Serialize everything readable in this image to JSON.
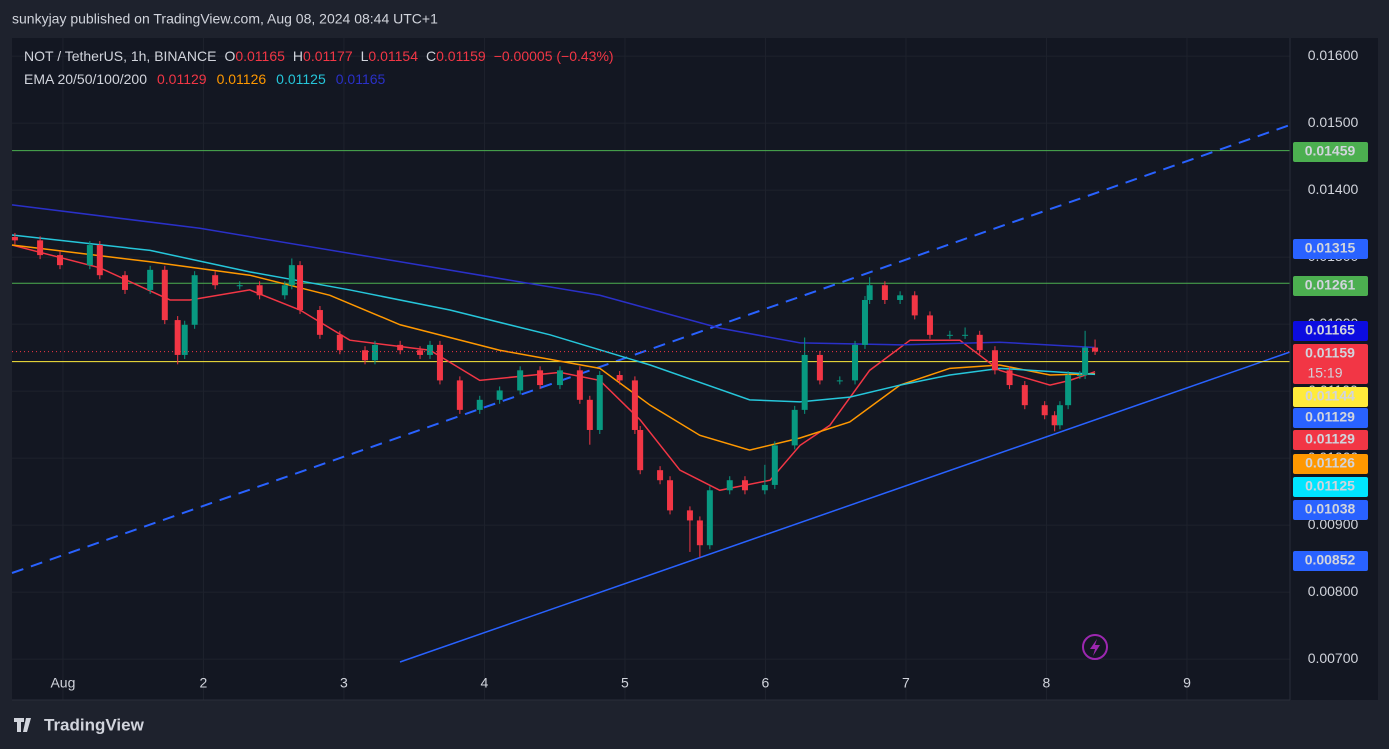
{
  "header": "sunkyjay published on TradingView.com, Aug 08, 2024 08:44 UTC+1",
  "footer": "TradingView",
  "chart_data": {
    "type": "candlestick",
    "symbol": "NOT / TetherUS, 1h, BINANCE",
    "ohlc_labels": [
      "O",
      "H",
      "L",
      "C"
    ],
    "change": "−0.00005 (−0.43%)",
    "indicator": "EMA 20/50/100/200",
    "countdown": "15:19",
    "x": [
      -8.2,
      -3.9,
      -0.5,
      4.6,
      6.3,
      10.6,
      14.9,
      17.4,
      19.6,
      20.8,
      22.5,
      26.0,
      30.2,
      33.6,
      37.9,
      39.1,
      40.5,
      43.9,
      47.3,
      51.6,
      53.3,
      57.6,
      61.0,
      62.7,
      64.4,
      67.8,
      71.2,
      74.6,
      78.1,
      81.5,
      84.9,
      88.3,
      90.0,
      91.7,
      95.1,
      97.7,
      98.6,
      102.0,
      103.7,
      107.1,
      108.8,
      110.5,
      113.9,
      116.5,
      119.9,
      121.6,
      125.0,
      126.7,
      129.3,
      132.7,
      135.3,
      137.0,
      137.8,
      140.4,
      143.0,
      145.5,
      148.1,
      151.5,
      154.1,
      156.6,
      159.2,
      161.7,
      164.3,
      167.7,
      169.4,
      170.3,
      171.7,
      173.7,
      174.6,
      176.3
    ],
    "open": [
      0.0133,
      0.01325,
      0.01303,
      0.01288,
      0.01318,
      0.01273,
      0.01251,
      0.01281,
      0.01206,
      0.01154,
      0.01199,
      0.01273,
      0.01258,
      0.01258,
      0.01243,
      0.01258,
      0.01288,
      0.01221,
      0.01184,
      0.01161,
      0.01146,
      0.01169,
      0.01161,
      0.01154,
      0.01169,
      0.01116,
      0.01072,
      0.01087,
      0.01101,
      0.01131,
      0.01109,
      0.01131,
      0.01087,
      0.01042,
      0.01124,
      0.01116,
      0.01042,
      0.00982,
      0.00967,
      0.00922,
      0.00907,
      0.0087,
      0.00952,
      0.00967,
      0.00952,
      0.0096,
      0.01019,
      0.01072,
      0.01154,
      0.01116,
      0.01116,
      0.01169,
      0.01236,
      0.01258,
      0.01236,
      0.01243,
      0.01213,
      0.01184,
      0.01184,
      0.01184,
      0.01161,
      0.01131,
      0.01109,
      0.01079,
      0.01064,
      0.01049,
      0.01079,
      0.01124,
      0.01124,
      0.01165
    ],
    "high": [
      0.01336,
      0.01331,
      0.01309,
      0.01324,
      0.01324,
      0.01279,
      0.01287,
      0.01287,
      0.01212,
      0.01205,
      0.01279,
      0.01279,
      0.01264,
      0.01264,
      0.01264,
      0.01298,
      0.01294,
      0.01227,
      0.0119,
      0.01167,
      0.01175,
      0.01175,
      0.01167,
      0.01175,
      0.01175,
      0.01122,
      0.01093,
      0.01107,
      0.01137,
      0.01137,
      0.01137,
      0.01137,
      0.01093,
      0.0113,
      0.0113,
      0.01122,
      0.01048,
      0.00988,
      0.00973,
      0.00928,
      0.00913,
      0.00958,
      0.00973,
      0.00973,
      0.0099,
      0.01025,
      0.01078,
      0.0118,
      0.0116,
      0.01122,
      0.01175,
      0.01242,
      0.0127,
      0.01264,
      0.01249,
      0.01249,
      0.01219,
      0.0119,
      0.01195,
      0.0119,
      0.01167,
      0.01137,
      0.01115,
      0.01085,
      0.0107,
      0.01085,
      0.0113,
      0.0113,
      0.0119,
      0.01177
    ],
    "low": [
      0.01319,
      0.01297,
      0.01282,
      0.01282,
      0.01267,
      0.01245,
      0.01245,
      0.012,
      0.0114,
      0.01148,
      0.01193,
      0.01252,
      0.01252,
      0.01237,
      0.01237,
      0.01252,
      0.01215,
      0.01178,
      0.01155,
      0.0114,
      0.0114,
      0.01155,
      0.01148,
      0.01148,
      0.0111,
      0.01066,
      0.01066,
      0.01081,
      0.01095,
      0.01103,
      0.01103,
      0.01081,
      0.0102,
      0.01036,
      0.0111,
      0.01036,
      0.00976,
      0.00961,
      0.00916,
      0.0086,
      0.00852,
      0.00864,
      0.00946,
      0.00946,
      0.00946,
      0.00954,
      0.01013,
      0.01066,
      0.0111,
      0.0111,
      0.0111,
      0.01163,
      0.0123,
      0.0123,
      0.0123,
      0.01207,
      0.01178,
      0.01178,
      0.01178,
      0.01155,
      0.01125,
      0.01103,
      0.01073,
      0.01058,
      0.0104,
      0.01043,
      0.01073,
      0.01118,
      0.01118,
      0.01154
    ],
    "close": [
      0.01325,
      0.01303,
      0.01288,
      0.01318,
      0.01273,
      0.01251,
      0.01281,
      0.01206,
      0.01154,
      0.01199,
      0.01273,
      0.01258,
      0.01258,
      0.01243,
      0.01258,
      0.01288,
      0.01221,
      0.01184,
      0.01161,
      0.01146,
      0.01169,
      0.01161,
      0.01154,
      0.01169,
      0.01116,
      0.01072,
      0.01087,
      0.01101,
      0.01131,
      0.01109,
      0.01131,
      0.01087,
      0.01042,
      0.01124,
      0.01116,
      0.01042,
      0.00982,
      0.00967,
      0.00922,
      0.00907,
      0.0087,
      0.00952,
      0.00967,
      0.00952,
      0.0096,
      0.01019,
      0.01072,
      0.01154,
      0.01116,
      0.01116,
      0.01169,
      0.01236,
      0.01258,
      0.01236,
      0.01243,
      0.01213,
      0.01184,
      0.01184,
      0.01184,
      0.01161,
      0.01131,
      0.01109,
      0.01079,
      0.01064,
      0.01049,
      0.01079,
      0.01124,
      0.01124,
      0.01165,
      0.01159
    ],
    "up_color": "#089981",
    "down_color": "#f23645",
    "ema": [
      {
        "color": "#f23645",
        "x": [
          -8.7,
          6.3,
          18.3,
          21.7,
          31.9,
          40.5,
          49.0,
          62.7,
          71.2,
          84.9,
          91.7,
          98.6,
          105.4,
          112.2,
          120.8,
          125.9,
          131.0,
          137.8,
          144.7,
          153.2,
          160.0,
          168.6,
          172.0,
          176.3
        ],
        "values": [
          0.01318,
          0.01284,
          0.01236,
          0.01236,
          0.01251,
          0.01221,
          0.01176,
          0.01161,
          0.01116,
          0.01128,
          0.01116,
          0.01057,
          0.00982,
          0.00952,
          0.00967,
          0.01019,
          0.01049,
          0.01131,
          0.01176,
          0.01176,
          0.01131,
          0.01109,
          0.01116,
          0.01129
        ]
      },
      {
        "color": "#ff9800",
        "x": [
          -8.7,
          14.9,
          31.9,
          45.6,
          57.6,
          74.6,
          91.7,
          100.3,
          108.8,
          117.3,
          125.9,
          134.4,
          143.0,
          151.5,
          160.0,
          168.6,
          176.3
        ],
        "values": [
          0.01318,
          0.01293,
          0.01273,
          0.01243,
          0.01199,
          0.01161,
          0.01134,
          0.01079,
          0.01034,
          0.01012,
          0.0103,
          0.01054,
          0.01109,
          0.01134,
          0.01139,
          0.01124,
          0.01126
        ]
      },
      {
        "color": "#26c6da",
        "x": [
          -8.7,
          14.9,
          31.9,
          49.0,
          66.1,
          83.2,
          100.3,
          117.3,
          125.9,
          134.4,
          143.0,
          151.5,
          160.0,
          176.3
        ],
        "values": [
          0.01333,
          0.0131,
          0.01278,
          0.01251,
          0.01221,
          0.01184,
          0.01139,
          0.01087,
          0.01084,
          0.01091,
          0.01109,
          0.01124,
          0.01134,
          0.01125
        ]
      },
      {
        "color": "#2a30c8",
        "x": [
          -8.7,
          23.4,
          57.6,
          91.7,
          112.2,
          125.9,
          143.0,
          160.0,
          176.3
        ],
        "values": [
          0.01378,
          0.01343,
          0.01293,
          0.01243,
          0.01194,
          0.01172,
          0.01169,
          0.01173,
          0.01165
        ]
      }
    ],
    "hlines": [
      {
        "value": 0.01459,
        "color": "#4caf50"
      },
      {
        "value": 0.01261,
        "color": "#4caf50"
      },
      {
        "value": 0.01144,
        "color": "#ffeb3b"
      }
    ],
    "axis_labels": [
      0.01315,
      0.01129,
      0.01038,
      0.00852
    ],
    "axis_label_color": "#2962ff",
    "xlim": [
      -8.7,
      209.6
    ],
    "ylim": [
      0.00639,
      0.01627
    ],
    "xticks": [
      {
        "value": 0,
        "label": "Aug"
      },
      {
        "value": 24,
        "label": "2"
      },
      {
        "value": 48,
        "label": "3"
      },
      {
        "value": 72,
        "label": "4"
      },
      {
        "value": 96,
        "label": "5"
      },
      {
        "value": 120,
        "label": "6"
      },
      {
        "value": 144,
        "label": "7"
      },
      {
        "value": 168,
        "label": "8"
      },
      {
        "value": 192,
        "label": "9"
      }
    ],
    "yticks": [
      {
        "value": 0.007,
        "label": "0.00700"
      },
      {
        "value": 0.008,
        "label": "0.00800"
      },
      {
        "value": 0.009,
        "label": "0.00900"
      },
      {
        "value": 0.01,
        "label": "0.01000"
      },
      {
        "value": 0.011,
        "label": "0.01100"
      },
      {
        "value": 0.012,
        "label": "0.01200"
      },
      {
        "value": 0.013,
        "label": "0.01300"
      },
      {
        "value": 0.014,
        "label": "0.01400"
      },
      {
        "value": 0.015,
        "label": "0.01500"
      },
      {
        "value": 0.016,
        "label": "0.01600"
      }
    ],
    "grid": true
  }
}
